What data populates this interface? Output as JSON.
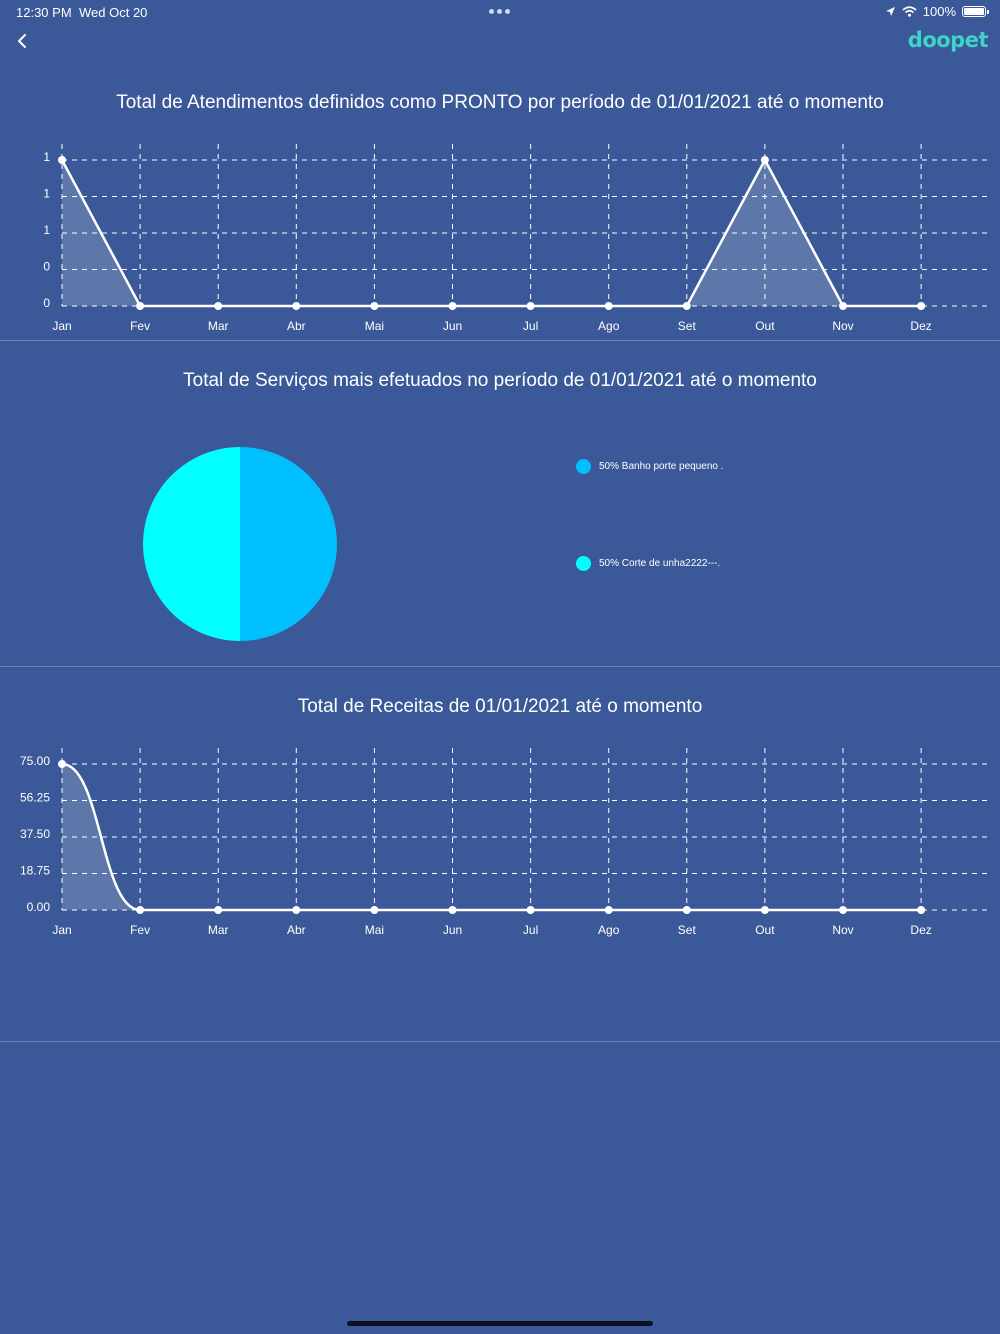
{
  "status_bar": {
    "time": "12:30 PM",
    "date": "Wed Oct 20",
    "battery": "100%"
  },
  "header": {
    "logo": "doopet",
    "back_icon": "chevron-left-icon"
  },
  "colors": {
    "background": "#3b5998",
    "line": "#ffffff",
    "pie_slice_1": "#00bfff",
    "pie_slice_2": "#00ffff",
    "divider": "#6d84b8"
  },
  "months": [
    "Jan",
    "Fev",
    "Mar",
    "Abr",
    "Mai",
    "Jun",
    "Jul",
    "Ago",
    "Set",
    "Out",
    "Nov",
    "Dez"
  ],
  "chart_data": [
    {
      "type": "area",
      "title": "Total de Atendimentos definidos como PRONTO por período de 01/01/2021 até o momento",
      "categories": [
        "Jan",
        "Fev",
        "Mar",
        "Abr",
        "Mai",
        "Jun",
        "Jul",
        "Ago",
        "Set",
        "Out",
        "Nov",
        "Dez"
      ],
      "values": [
        1,
        0,
        0,
        0,
        0,
        0,
        0,
        0,
        0,
        1,
        0,
        0
      ],
      "ylim": [
        0,
        1
      ],
      "ytick_labels": [
        "1",
        "1",
        "1",
        "0",
        "0"
      ],
      "grid": true
    },
    {
      "type": "pie",
      "title": "Total de Serviços mais efetuados no período de 01/01/2021 até o momento",
      "labels": [
        "50% Banho porte pequeno .",
        "50% Corte de unha2222---."
      ],
      "values": [
        50,
        50
      ],
      "legend": "right"
    },
    {
      "type": "area",
      "title": "Total de Receitas de 01/01/2021 até o momento",
      "categories": [
        "Jan",
        "Fev",
        "Mar",
        "Abr",
        "Mai",
        "Jun",
        "Jul",
        "Ago",
        "Set",
        "Out",
        "Nov",
        "Dez"
      ],
      "values": [
        75,
        0,
        0,
        0,
        0,
        0,
        0,
        0,
        0,
        0,
        0,
        0
      ],
      "ylim": [
        0,
        75
      ],
      "ytick_labels": [
        "75.00",
        "56.25",
        "37.50",
        "18.75",
        "0.00"
      ],
      "grid": true,
      "smooth": true
    }
  ]
}
